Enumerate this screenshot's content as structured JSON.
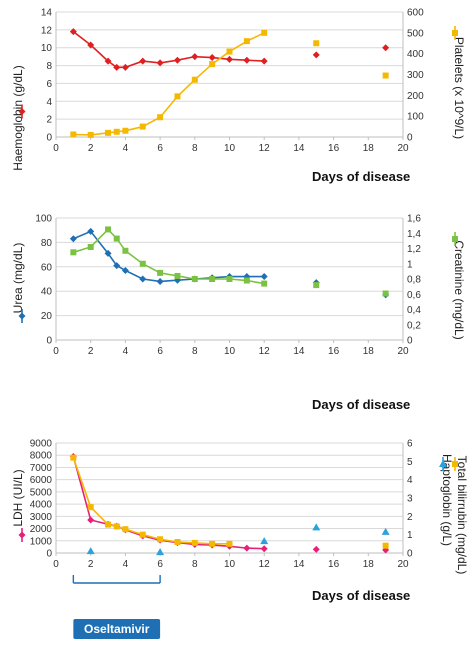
{
  "chart_data": [
    {
      "type": "line",
      "xlabel": "Days of disease",
      "xlim": [
        0,
        20
      ],
      "xticks": [
        0,
        2,
        4,
        6,
        8,
        10,
        12,
        14,
        16,
        18,
        20
      ],
      "ylim_left": [
        0,
        14
      ],
      "yticks_left": [
        0,
        2,
        4,
        6,
        8,
        10,
        12,
        14
      ],
      "ylim_right": [
        0,
        600
      ],
      "yticks_right": [
        0,
        100,
        200,
        300,
        400,
        500,
        600
      ],
      "grid": "horizontal",
      "series": [
        {
          "name": "Haemoglobin (g/dL)",
          "axis": "left",
          "color": "#e02020",
          "marker": "diamond",
          "x": [
            1,
            2,
            3,
            3.5,
            4,
            5,
            6,
            7,
            8,
            9,
            10,
            11,
            12
          ],
          "y": [
            11.8,
            10.3,
            8.5,
            7.8,
            7.8,
            8.5,
            8.3,
            8.6,
            9.0,
            8.9,
            8.7,
            8.6,
            8.5
          ],
          "extra_x": [
            15,
            19
          ],
          "extra_y": [
            9.2,
            10.0
          ]
        },
        {
          "name": "Platelets (x 10^9/L)",
          "axis": "right",
          "color": "#f5b800",
          "marker": "square",
          "x": [
            1,
            2,
            3,
            3.5,
            4,
            5,
            6,
            7,
            8,
            9,
            10,
            11,
            12
          ],
          "y": [
            12,
            10,
            20,
            25,
            30,
            50,
            95,
            195,
            275,
            350,
            410,
            460,
            500
          ],
          "extra_x": [
            15,
            19
          ],
          "extra_y": [
            450,
            295
          ]
        }
      ]
    },
    {
      "type": "line",
      "xlabel": "Days of disease",
      "xlim": [
        0,
        20
      ],
      "xticks": [
        0,
        2,
        4,
        6,
        8,
        10,
        12,
        14,
        16,
        18,
        20
      ],
      "ylim_left": [
        0,
        100
      ],
      "yticks_left": [
        0,
        20,
        40,
        60,
        80,
        100
      ],
      "ytick_labels_right": [
        "0",
        "0,2",
        "0,4",
        "0,6",
        "0,8",
        "1",
        "1,2",
        "1,4",
        "1,6"
      ],
      "ylim_right": [
        0,
        1.6
      ],
      "yticks_right": [
        0,
        0.2,
        0.4,
        0.6,
        0.8,
        1,
        1.2,
        1.4,
        1.6
      ],
      "grid": "horizontal",
      "series": [
        {
          "name": "Urea (mg/dL)",
          "axis": "left",
          "color": "#1f6fb5",
          "marker": "diamond",
          "x": [
            1,
            2,
            3,
            3.5,
            4,
            5,
            6,
            7,
            8,
            9,
            10,
            11,
            12
          ],
          "y": [
            83,
            89,
            71,
            61,
            57,
            50,
            48,
            49,
            50,
            51,
            52,
            52,
            52
          ],
          "extra_x": [
            15,
            19
          ],
          "extra_y": [
            47,
            37
          ]
        },
        {
          "name": "Creatinine (mg/dL)",
          "axis": "right",
          "color": "#7cc242",
          "marker": "square",
          "x": [
            1,
            2,
            3,
            3.5,
            4,
            5,
            6,
            7,
            8,
            9,
            10,
            11,
            12
          ],
          "y": [
            1.15,
            1.22,
            1.45,
            1.33,
            1.17,
            1.0,
            0.88,
            0.84,
            0.8,
            0.8,
            0.8,
            0.78,
            0.74
          ],
          "extra_x": [
            15,
            19
          ],
          "extra_y": [
            0.72,
            0.61
          ]
        }
      ]
    },
    {
      "type": "line",
      "xlabel": "Days of disease",
      "xlim": [
        0,
        20
      ],
      "xticks": [
        0,
        2,
        4,
        6,
        8,
        10,
        12,
        14,
        16,
        18,
        20
      ],
      "ylim_left": [
        0,
        9000
      ],
      "yticks_left": [
        0,
        1000,
        2000,
        3000,
        4000,
        5000,
        6000,
        7000,
        8000,
        9000
      ],
      "ylim_right": [
        0,
        6
      ],
      "yticks_right": [
        0,
        1,
        2,
        3,
        4,
        5,
        6
      ],
      "grid": "horizontal",
      "series": [
        {
          "name": "LDH (UI/L)",
          "axis": "left",
          "color": "#e8207a",
          "marker": "diamond",
          "x": [
            1,
            2,
            3,
            3.5,
            4,
            5,
            6,
            7,
            8,
            9,
            10,
            11,
            12
          ],
          "y": [
            7900,
            2700,
            2350,
            2200,
            1900,
            1400,
            1050,
            850,
            700,
            650,
            550,
            400,
            350
          ],
          "extra_x": [
            15,
            19
          ],
          "extra_y": [
            300,
            250
          ]
        },
        {
          "name": "Total bilirrubin (mg/dL)",
          "axis": "right",
          "color": "#f5b800",
          "marker": "square",
          "x": [
            1,
            2,
            3,
            3.5,
            4,
            5,
            6,
            7,
            8,
            9,
            10
          ],
          "y": [
            5.2,
            2.5,
            1.55,
            1.45,
            1.3,
            1.0,
            0.75,
            0.6,
            0.55,
            0.5,
            0.5
          ],
          "extra_x": [
            19
          ],
          "extra_y": [
            0.4
          ]
        },
        {
          "name": "Haptoglobin (g/L)",
          "axis": "right",
          "color": "#29a3db",
          "marker": "triangle",
          "x": [
            2,
            6,
            12,
            15,
            19
          ],
          "y": [
            0.1,
            0.05,
            0.65,
            1.4,
            1.15
          ]
        }
      ],
      "treatment": {
        "label": "Oseltamivir",
        "start_day": 1,
        "end_day": 6,
        "color": "#1f6fb5"
      }
    }
  ]
}
